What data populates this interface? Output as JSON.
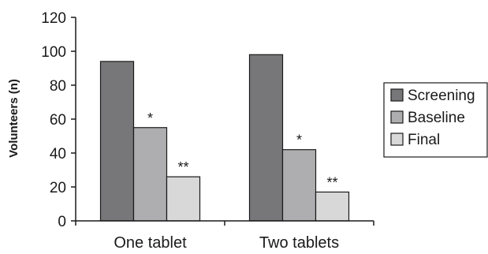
{
  "chart_data": {
    "type": "bar",
    "title": "",
    "xlabel": "",
    "ylabel": "Volunteers (n)",
    "ylim": [
      0,
      120
    ],
    "yticks": [
      0,
      20,
      40,
      60,
      80,
      100,
      120
    ],
    "categories": [
      "One tablet",
      "Two tablets"
    ],
    "series": [
      {
        "name": "Screening",
        "color": "#77777a",
        "values": [
          94,
          98
        ]
      },
      {
        "name": "Baseline",
        "color": "#aeaeb0",
        "values": [
          55,
          42
        ]
      },
      {
        "name": "Final",
        "color": "#d8d8d8",
        "values": [
          26,
          17
        ]
      }
    ],
    "annotations": [
      [
        "",
        "*",
        "**"
      ],
      [
        "",
        "*",
        "**"
      ]
    ],
    "grid": false,
    "legend": "right"
  }
}
